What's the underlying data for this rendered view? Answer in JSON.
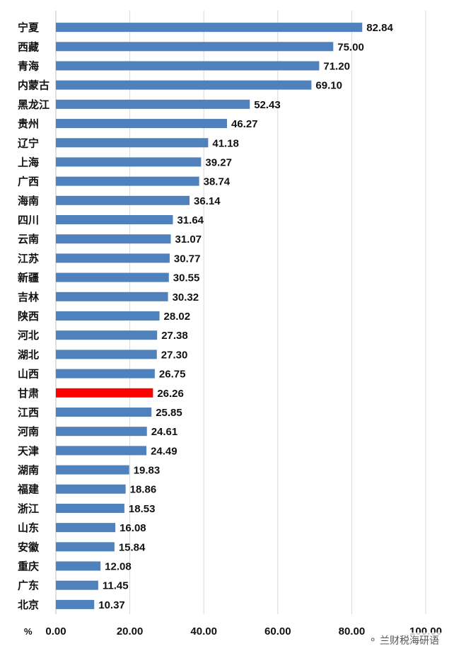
{
  "chart_data": {
    "type": "bar",
    "orientation": "horizontal",
    "unit": "%",
    "categories": [
      "宁夏",
      "西藏",
      "青海",
      "内蒙古",
      "黑龙江",
      "贵州",
      "辽宁",
      "上海",
      "广西",
      "海南",
      "四川",
      "云南",
      "江苏",
      "新疆",
      "吉林",
      "陕西",
      "河北",
      "湖北",
      "山西",
      "甘肃",
      "江西",
      "河南",
      "天津",
      "湖南",
      "福建",
      "浙江",
      "山东",
      "安徽",
      "重庆",
      "广东",
      "北京"
    ],
    "values": [
      82.84,
      75.0,
      71.2,
      69.1,
      52.43,
      46.27,
      41.18,
      39.27,
      38.74,
      36.14,
      31.64,
      31.07,
      30.77,
      30.55,
      30.32,
      28.02,
      27.38,
      27.3,
      26.75,
      26.26,
      25.85,
      24.61,
      24.49,
      19.83,
      18.86,
      18.53,
      16.08,
      15.84,
      12.08,
      11.45,
      10.37
    ],
    "value_labels": [
      "82.84",
      "75.00",
      "71.20",
      "69.10",
      "52.43",
      "46.27",
      "41.18",
      "39.27",
      "38.74",
      "36.14",
      "31.64",
      "31.07",
      "30.77",
      "30.55",
      "30.32",
      "28.02",
      "27.38",
      "27.30",
      "26.75",
      "26.26",
      "25.85",
      "24.61",
      "24.49",
      "19.83",
      "18.86",
      "18.53",
      "16.08",
      "15.84",
      "12.08",
      "11.45",
      "10.37"
    ],
    "highlight_category": "甘肃",
    "xlim": [
      0,
      100
    ],
    "xticks": [
      "0.00",
      "20.00",
      "40.00",
      "60.00",
      "80.00",
      "100.00"
    ],
    "grid": true,
    "colors": {
      "bar": "#4f81bd",
      "highlight": "#ff0000",
      "highlight_label": "#ff0000"
    }
  },
  "watermark": {
    "icon": "wechat-icon",
    "text": "兰财税海研语"
  }
}
